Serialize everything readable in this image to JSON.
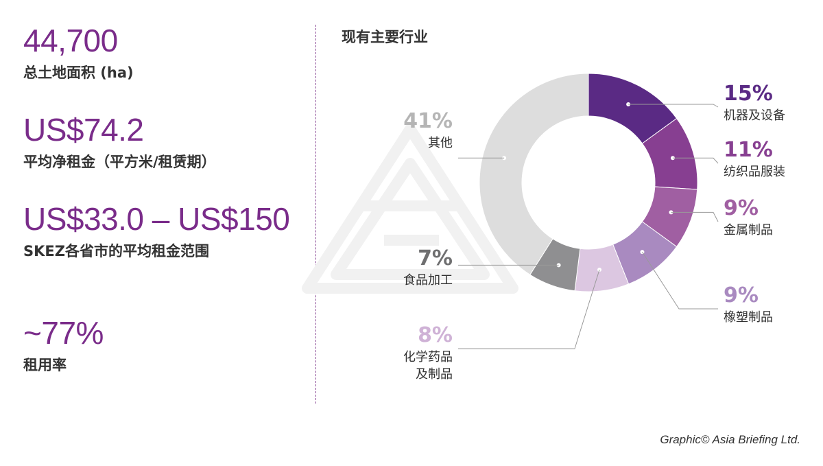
{
  "stats": [
    {
      "value": "44,700",
      "label": "总土地面积 (ha)"
    },
    {
      "value": "US$74.2",
      "label": "平均净租金（平方米/租赁期）"
    },
    {
      "value": "US$33.0 – US$150",
      "label": "SKEZ各省市的平均租金范围"
    },
    {
      "value": "~77%",
      "label": "租用率"
    }
  ],
  "credit": "Graphic© Asia Briefing Ltd.",
  "chart_data": {
    "type": "pie",
    "title": "现有主要行业",
    "donut": true,
    "slices": [
      {
        "label": "机器及设备",
        "value": 15,
        "display": "15%",
        "color": "#5a2a84"
      },
      {
        "label": "纺织品服装",
        "value": 11,
        "display": "11%",
        "color": "#873f91"
      },
      {
        "label": "金属制品",
        "value": 9,
        "display": "9%",
        "color": "#a05fa2"
      },
      {
        "label": "橡塑制品",
        "value": 9,
        "display": "9%",
        "color": "#a98ac0"
      },
      {
        "label": "化学药品及制品",
        "value": 8,
        "display": "8%",
        "color": "#dcc7e1"
      },
      {
        "label": "食品加工",
        "value": 7,
        "display": "7%",
        "color": "#8f8f91"
      },
      {
        "label": "其他",
        "value": 41,
        "display": "41%",
        "color": "#dddddd"
      }
    ],
    "label_lines": {
      "化学药品及制品": [
        "化学药品",
        "及制品"
      ]
    },
    "legend": "callouts"
  }
}
